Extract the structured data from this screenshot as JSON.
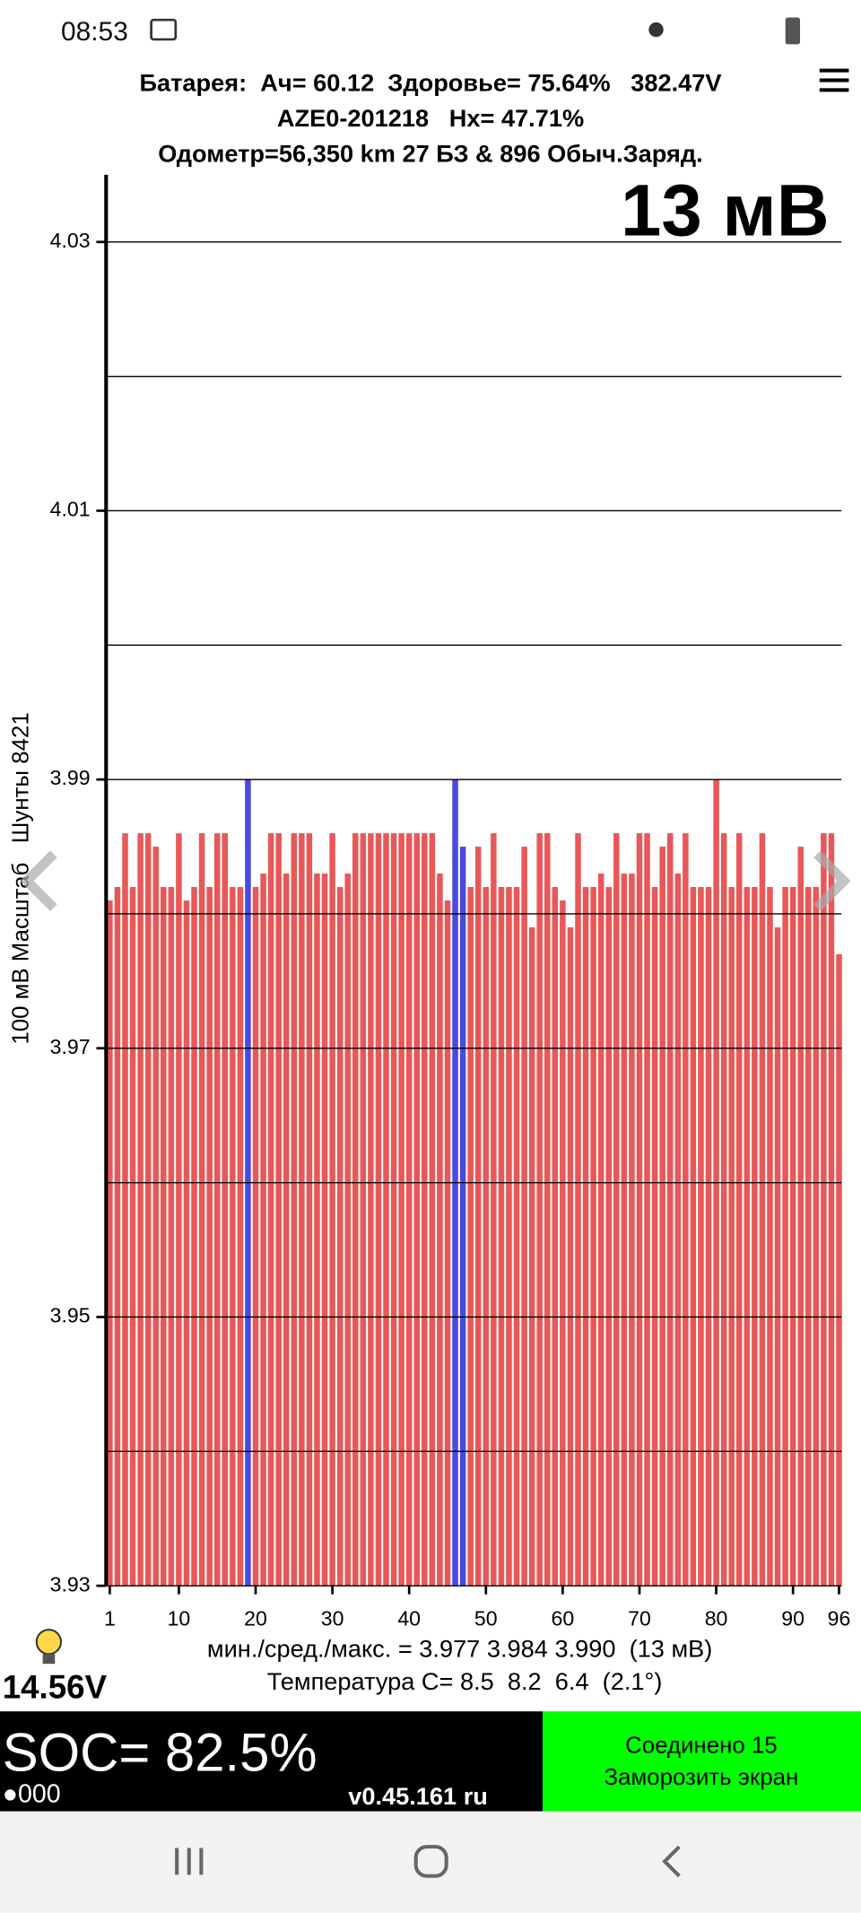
{
  "status_bar": {
    "time": "08:53"
  },
  "header": {
    "line1": "Батарея:  Ач= 60.12  Здоровье= 75.64%   382.47V",
    "line2": "AZE0-201218   Hx= 47.71%",
    "line3": "Одометр=56,350 km 27 БЗ & 896 Обыч.Заряд.",
    "delta": "13 мВ"
  },
  "chart_data": {
    "type": "bar",
    "y_label": "100 мВ Масштаб   Шунты 8421",
    "categories": [
      1,
      null,
      null,
      null,
      null,
      null,
      null,
      null,
      null,
      10,
      null,
      null,
      null,
      null,
      null,
      null,
      null,
      null,
      null,
      20,
      null,
      null,
      null,
      null,
      null,
      null,
      null,
      null,
      null,
      30,
      null,
      null,
      null,
      null,
      null,
      null,
      null,
      null,
      null,
      40,
      null,
      null,
      null,
      null,
      null,
      null,
      null,
      null,
      null,
      50,
      null,
      null,
      null,
      null,
      null,
      null,
      null,
      null,
      null,
      60,
      null,
      null,
      null,
      null,
      null,
      null,
      null,
      null,
      null,
      70,
      null,
      null,
      null,
      null,
      null,
      null,
      null,
      null,
      null,
      80,
      null,
      null,
      null,
      null,
      null,
      null,
      null,
      null,
      null,
      90,
      null,
      null,
      null,
      null,
      null,
      96
    ],
    "values": [
      3.981,
      3.982,
      3.986,
      3.982,
      3.986,
      3.986,
      3.985,
      3.982,
      3.982,
      3.986,
      3.981,
      3.982,
      3.986,
      3.982,
      3.986,
      3.986,
      3.982,
      3.982,
      3.99,
      3.982,
      3.983,
      3.986,
      3.986,
      3.983,
      3.986,
      3.986,
      3.986,
      3.983,
      3.983,
      3.986,
      3.982,
      3.983,
      3.986,
      3.986,
      3.986,
      3.986,
      3.986,
      3.986,
      3.986,
      3.986,
      3.986,
      3.986,
      3.986,
      3.983,
      3.981,
      3.99,
      3.985,
      3.982,
      3.985,
      3.982,
      3.986,
      3.982,
      3.982,
      3.982,
      3.985,
      3.979,
      3.986,
      3.986,
      3.982,
      3.981,
      3.979,
      3.986,
      3.982,
      3.982,
      3.983,
      3.982,
      3.986,
      3.983,
      3.983,
      3.986,
      3.986,
      3.982,
      3.985,
      3.986,
      3.983,
      3.986,
      3.982,
      3.982,
      3.982,
      3.99,
      3.986,
      3.982,
      3.986,
      3.982,
      3.982,
      3.986,
      3.982,
      3.979,
      3.982,
      3.982,
      3.985,
      3.982,
      3.982,
      3.986,
      3.986,
      3.977
    ],
    "colors": [
      "#e85858",
      "#e85858",
      "#e85858",
      "#e85858",
      "#e85858",
      "#e85858",
      "#e85858",
      "#e85858",
      "#e85858",
      "#e85858",
      "#e85858",
      "#e85858",
      "#e85858",
      "#e85858",
      "#e85858",
      "#e85858",
      "#e85858",
      "#e85858",
      "#4a4adf",
      "#e85858",
      "#e85858",
      "#e85858",
      "#e85858",
      "#e85858",
      "#e85858",
      "#e85858",
      "#e85858",
      "#e85858",
      "#e85858",
      "#e85858",
      "#e85858",
      "#e85858",
      "#e85858",
      "#e85858",
      "#e85858",
      "#e85858",
      "#e85858",
      "#e85858",
      "#e85858",
      "#e85858",
      "#e85858",
      "#e85858",
      "#e85858",
      "#e85858",
      "#e85858",
      "#4a4adf",
      "#4a4adf",
      "#e85858",
      "#e85858",
      "#e85858",
      "#e85858",
      "#e85858",
      "#e85858",
      "#e85858",
      "#e85858",
      "#e85858",
      "#e85858",
      "#e85858",
      "#e85858",
      "#e85858",
      "#e85858",
      "#e85858",
      "#e85858",
      "#e85858",
      "#e85858",
      "#e85858",
      "#e85858",
      "#e85858",
      "#e85858",
      "#e85858",
      "#e85858",
      "#e85858",
      "#e85858",
      "#e85858",
      "#e85858",
      "#e85858",
      "#e85858",
      "#e85858",
      "#e85858",
      "#e85858",
      "#e85858",
      "#e85858",
      "#e85858",
      "#e85858",
      "#e85858",
      "#e85858",
      "#e85858",
      "#e85858",
      "#e85858",
      "#e85858",
      "#e85858",
      "#e85858",
      "#e85858",
      "#e85858",
      "#e85858",
      "#e85858"
    ],
    "ylim": [
      3.93,
      4.035
    ],
    "yticks": [
      3.93,
      3.95,
      3.97,
      3.99,
      4.01,
      4.03
    ],
    "ygrid": [
      3.93,
      3.94,
      3.95,
      3.96,
      3.97,
      3.98,
      3.99,
      4.0,
      4.01,
      4.02,
      4.03
    ],
    "grid": true
  },
  "stats": {
    "line1": "мин./сред./макс. = 3.977 3.984 3.990  (13 мВ)",
    "line2": "Температура С= 8.5  8.2  6.4  (2.1°)"
  },
  "footer": {
    "voltage": "14.56V",
    "soc": "SOC= 82.5%",
    "dots": "●000",
    "version": "v0.45.161 ru",
    "button_line1": "Соединено 15",
    "button_line2": "Заморозить экран"
  }
}
